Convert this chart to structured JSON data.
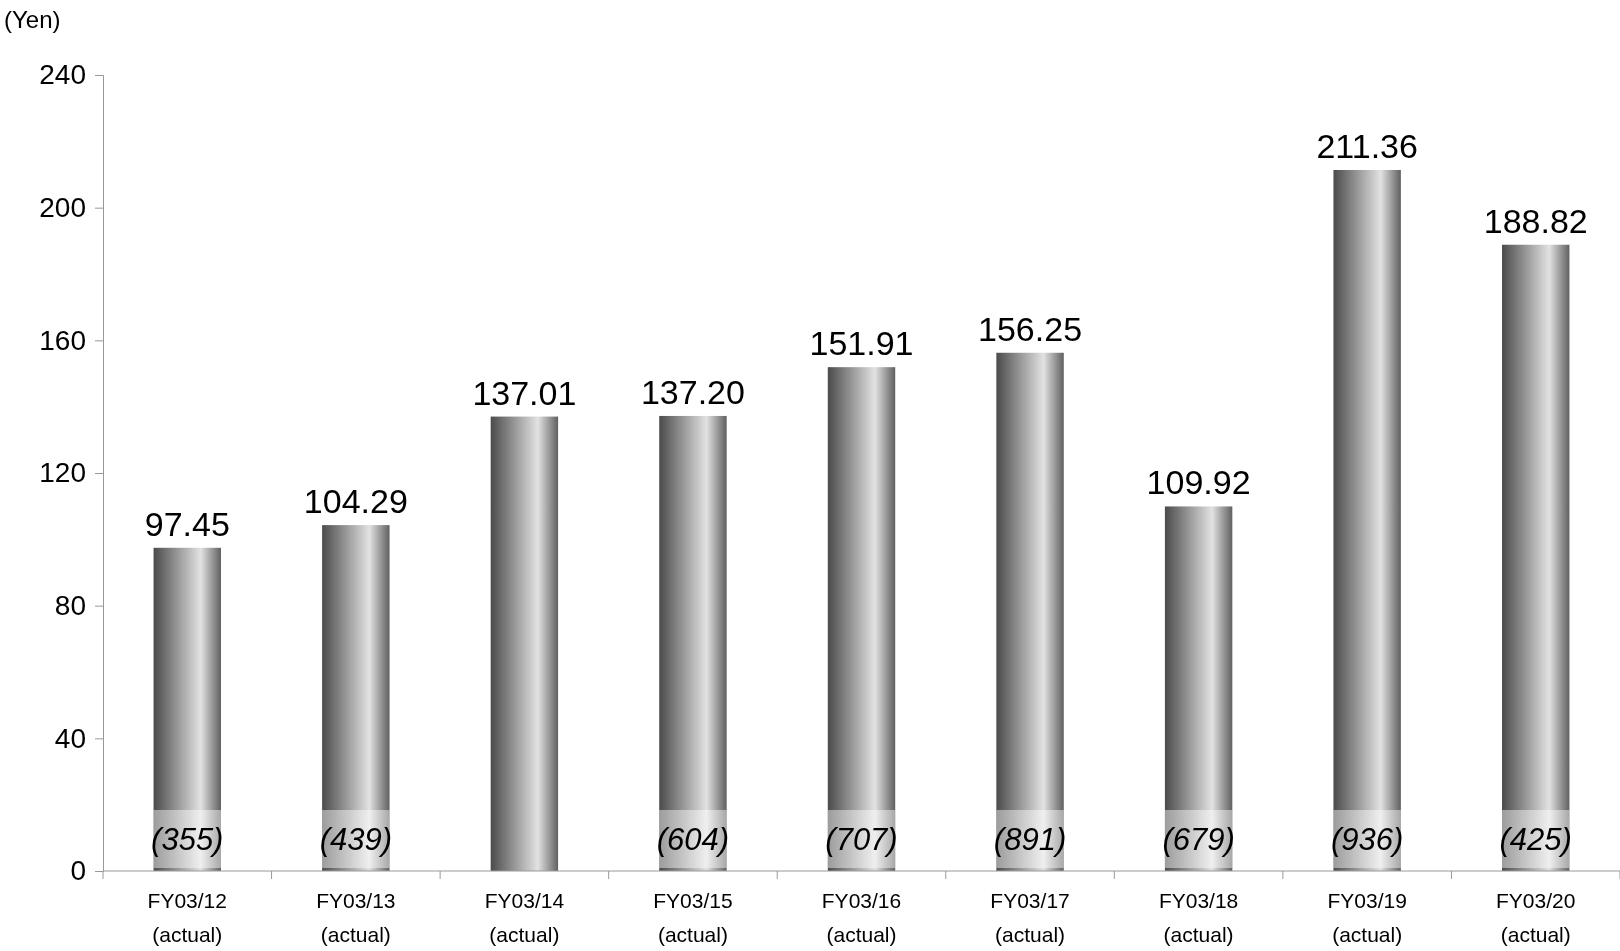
{
  "chart_data": {
    "type": "bar",
    "ylabel": "(Yen)",
    "categories": [
      "FY03/12 (actual)",
      "FY03/13 (actual)",
      "FY03/14 (actual)",
      "FY03/15 (actual)",
      "FY03/16 (actual)",
      "FY03/17 (actual)",
      "FY03/18 (actual)",
      "FY03/19 (actual)",
      "FY03/20 (actual)"
    ],
    "values": [
      97.45,
      104.29,
      137.01,
      137.2,
      151.91,
      156.25,
      109.92,
      211.36,
      188.82
    ],
    "value_labels": [
      "97.45",
      "104.29",
      "137.01",
      "137.20",
      "151.91",
      "156.25",
      "109.92",
      "211.36",
      "188.82"
    ],
    "color": "#808080",
    "ylim": [
      0,
      240
    ],
    "yticks": [
      0,
      40,
      80,
      120,
      160,
      200,
      240
    ],
    "grid": false,
    "annotations": [
      "(355)",
      "(439)",
      null,
      "(604)",
      "(707)",
      "(891)",
      "(679)",
      "(936)",
      "(425)"
    ]
  }
}
